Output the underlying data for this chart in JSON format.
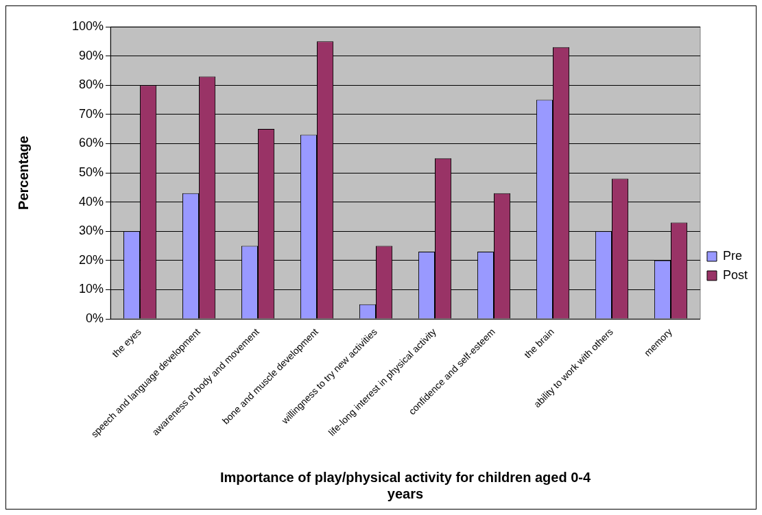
{
  "chart_data": {
    "type": "bar",
    "xlabel": "Importance of play/physical activity for children aged 0-4 years",
    "ylabel": "Percentage",
    "categories": [
      "the eyes",
      "speech and language development",
      "awareness of body and movement",
      "bone and muscle development",
      "willingness to try new activities",
      "life-long interest in physical activity",
      "confidence and self-esteem",
      "the brain",
      "ability to work with others",
      "memory"
    ],
    "series": [
      {
        "name": "Pre",
        "color": "#9999ff",
        "values": [
          30,
          43,
          25,
          63,
          5,
          23,
          23,
          75,
          30,
          20
        ]
      },
      {
        "name": "Post",
        "color": "#993366",
        "values": [
          80,
          83,
          65,
          95,
          25,
          55,
          43,
          93,
          48,
          33
        ]
      }
    ],
    "ylim": [
      0,
      100
    ],
    "yticks": [
      {
        "value": 0,
        "label": "0%"
      },
      {
        "value": 10,
        "label": "10%"
      },
      {
        "value": 20,
        "label": "20%"
      },
      {
        "value": 30,
        "label": "30%"
      },
      {
        "value": 40,
        "label": "40%"
      },
      {
        "value": 50,
        "label": "50%"
      },
      {
        "value": 60,
        "label": "60%"
      },
      {
        "value": 70,
        "label": "70%"
      },
      {
        "value": 80,
        "label": "80%"
      },
      {
        "value": 90,
        "label": "90%"
      },
      {
        "value": 100,
        "label": "100%"
      }
    ],
    "grid": "y",
    "legend": "right"
  }
}
